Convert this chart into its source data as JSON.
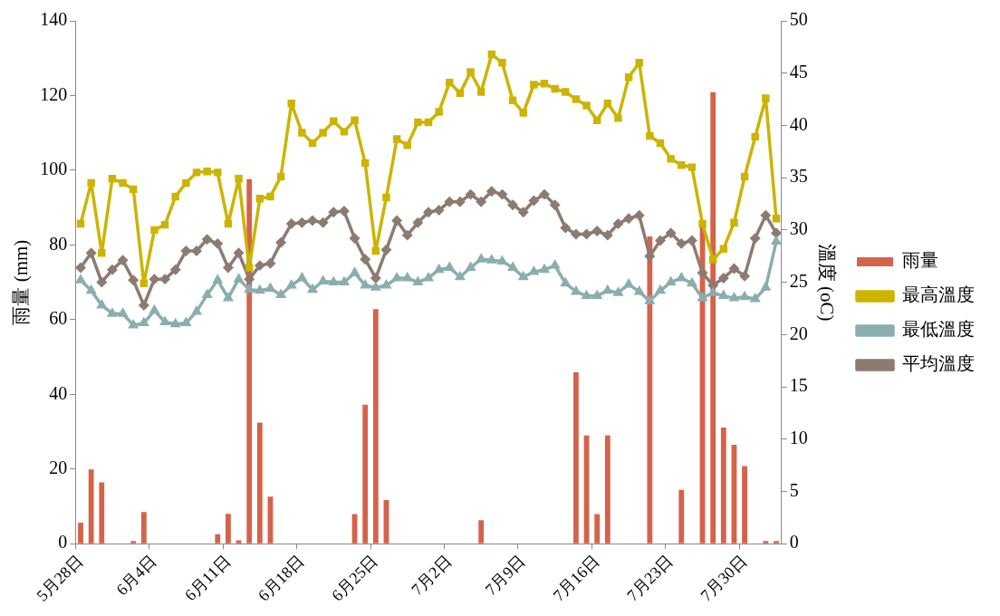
{
  "chart_data": {
    "type": "bar",
    "categories": [
      "5月28日",
      null,
      null,
      null,
      null,
      null,
      null,
      "6月4日",
      null,
      null,
      null,
      null,
      null,
      null,
      "6月11日",
      null,
      null,
      null,
      null,
      null,
      null,
      "6月18日",
      null,
      null,
      null,
      null,
      null,
      null,
      "6月25日",
      null,
      null,
      null,
      null,
      null,
      null,
      "7月2日",
      null,
      null,
      null,
      null,
      null,
      null,
      "7月9日",
      null,
      null,
      null,
      null,
      null,
      null,
      "7月16日",
      null,
      null,
      null,
      null,
      null,
      null,
      "7月23日",
      null,
      null,
      null,
      null,
      null,
      null,
      "7月30日",
      null,
      null,
      null
    ],
    "ylabel": "雨量 (mm)",
    "y2label": "溫度 (oC)",
    "ylim": [
      0,
      140
    ],
    "yticks": [
      0,
      20,
      40,
      60,
      80,
      100,
      120,
      140
    ],
    "y2lim": [
      0,
      50
    ],
    "y2ticks": [
      0,
      5,
      10,
      15,
      20,
      25,
      30,
      35,
      40,
      45,
      50
    ],
    "grid": false,
    "legend": "right",
    "series": [
      {
        "name": "雨量",
        "color": "#d4634a",
        "values": [
          5.6,
          19.9,
          16.4,
          0,
          0,
          0.7,
          8.5,
          0,
          0,
          0,
          0,
          0,
          0,
          2.5,
          8.0,
          0.9,
          97.6,
          32.4,
          12.6,
          0,
          0,
          0,
          0,
          0,
          0,
          0,
          7.9,
          37.2,
          62.8,
          11.7,
          0,
          0,
          0,
          0,
          0,
          0,
          0,
          0,
          6.3,
          0,
          0,
          0,
          0,
          0,
          0,
          0,
          0,
          45.9,
          29.0,
          7.9,
          29.0,
          0,
          0,
          0,
          82.3,
          0,
          0,
          14.4,
          0,
          85,
          120.9,
          31.1,
          26.5,
          20.8,
          0,
          0.7,
          0.7
        ]
      },
      {
        "name": "最高溫度",
        "type": "line",
        "axis": "y2",
        "marker": "square",
        "color": "#ccb400",
        "values": [
          30.6,
          34.5,
          27.8,
          34.9,
          34.5,
          33.9,
          24.9,
          30.0,
          30.5,
          33.2,
          34.5,
          35.5,
          35.6,
          35.5,
          30.6,
          34.9,
          26.4,
          33.0,
          33.2,
          35.1,
          42.1,
          39.3,
          38.3,
          39.3,
          40.4,
          39.4,
          40.5,
          36.4,
          28.0,
          33.1,
          38.7,
          38.1,
          40.3,
          40.3,
          41.3,
          44.1,
          43.1,
          45.1,
          43.2,
          46.8,
          46.0,
          42.4,
          41.2,
          43.9,
          44.0,
          43.5,
          43.2,
          42.5,
          41.9,
          40.5,
          42.1,
          40.7,
          44.6,
          46.0,
          39.0,
          38.3,
          36.8,
          36.2,
          36.0,
          30.6,
          27.2,
          28.2,
          30.7,
          35.1,
          38.9,
          42.6,
          31.1
        ]
      },
      {
        "name": "最低溫度",
        "type": "line",
        "axis": "y2",
        "marker": "triangle",
        "color": "#8aaeae",
        "values": [
          25.2,
          24.2,
          22.8,
          22.0,
          22.0,
          20.9,
          21.1,
          22.3,
          21.2,
          21.0,
          21.1,
          22.2,
          23.8,
          25.2,
          23.5,
          25.3,
          24.3,
          24.2,
          24.4,
          23.8,
          24.7,
          25.4,
          24.3,
          25.1,
          25.0,
          25.0,
          25.9,
          24.7,
          24.5,
          24.7,
          25.4,
          25.4,
          25.0,
          25.4,
          26.2,
          26.4,
          25.5,
          26.4,
          27.2,
          27.1,
          27.0,
          26.4,
          25.5,
          26.0,
          26.2,
          26.6,
          24.9,
          24.1,
          23.7,
          23.7,
          24.2,
          24.0,
          24.8,
          24.1,
          23.2,
          24.2,
          25.0,
          25.4,
          24.9,
          23.5,
          24.0,
          23.7,
          23.5,
          23.6,
          23.4,
          24.5,
          28.9
        ]
      },
      {
        "name": "平均溫度",
        "type": "line",
        "axis": "y2",
        "marker": "diamond",
        "color": "#8c7b70",
        "values": [
          26.4,
          27.8,
          25.0,
          26.2,
          27.1,
          25.2,
          22.8,
          25.3,
          25.3,
          26.2,
          28.0,
          28.0,
          29.1,
          28.7,
          26.4,
          27.8,
          25.3,
          26.6,
          26.8,
          28.8,
          30.6,
          30.7,
          30.9,
          30.7,
          31.7,
          31.8,
          29.2,
          27.2,
          25.4,
          28.1,
          30.9,
          29.5,
          30.7,
          31.7,
          31.9,
          32.7,
          32.7,
          33.4,
          32.7,
          33.7,
          33.4,
          32.4,
          31.7,
          32.8,
          33.4,
          32.4,
          30.2,
          29.6,
          29.6,
          29.9,
          29.5,
          30.6,
          31.1,
          31.4,
          27.5,
          29.0,
          29.7,
          28.7,
          29.0,
          25.9,
          24.7,
          25.4,
          26.3,
          25.6,
          29.2,
          31.4,
          29.7
        ]
      }
    ]
  }
}
